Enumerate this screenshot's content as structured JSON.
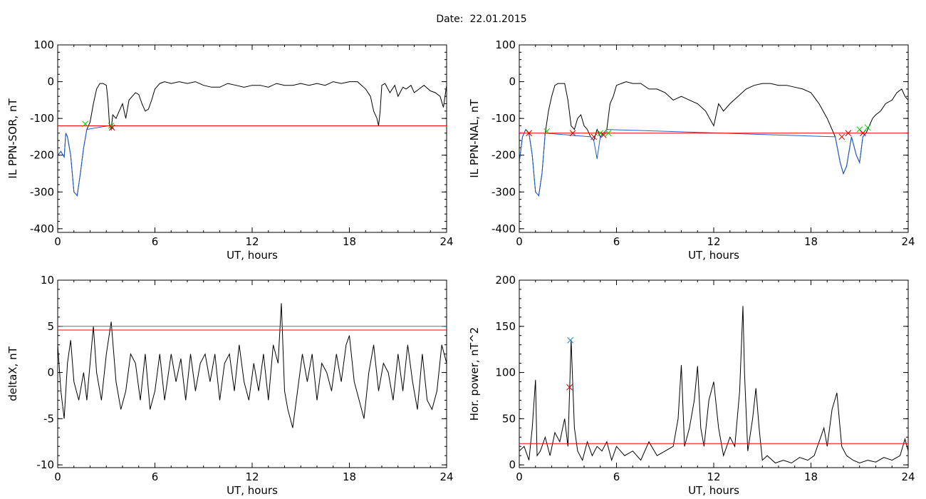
{
  "header": {
    "date_label": "Date:",
    "date_value": "22.01.2015"
  },
  "chart_data": [
    {
      "type": "line",
      "ylabel": "IL PPN-SOR, nT",
      "xlabel": "UT, hours",
      "xlim": [
        0,
        24
      ],
      "ylim": [
        -410,
        100
      ],
      "x_ticks": [
        "0",
        "6",
        "12",
        "18",
        "24"
      ],
      "y_ticks": [
        "100",
        "0",
        "-100",
        "-200",
        "-300",
        "-400"
      ],
      "series": [
        {
          "color": "#000000",
          "x": [
            0,
            0.2,
            0.4,
            0.5,
            0.6,
            0.8,
            1.0,
            1.2,
            1.4,
            1.6,
            1.8,
            2.0,
            2.2,
            2.4,
            2.6,
            2.8,
            3.0,
            3.1,
            3.2,
            3.3,
            3.4,
            3.6,
            3.8,
            4.0,
            4.2,
            4.4,
            4.6,
            4.8,
            5.0,
            5.2,
            5.4,
            5.6,
            5.8,
            6.0,
            6.3,
            6.6,
            7.0,
            7.5,
            8.0,
            8.5,
            9.0,
            9.5,
            10.0,
            10.5,
            11.0,
            11.5,
            12.0,
            12.5,
            13.0,
            13.5,
            14.0,
            14.5,
            15.0,
            15.5,
            16.0,
            16.5,
            17.0,
            17.5,
            18.0,
            18.5,
            19.0,
            19.3,
            19.5,
            19.7,
            19.8,
            19.9,
            20.0,
            20.2,
            20.5,
            20.8,
            21.0,
            21.3,
            21.5,
            21.8,
            22.0,
            22.3,
            22.6,
            23.0,
            23.3,
            23.6,
            23.8,
            24.0
          ],
          "y": [
            -200,
            -190,
            -205,
            -140,
            -150,
            -200,
            -300,
            -310,
            -250,
            -180,
            -130,
            -110,
            -60,
            -20,
            -5,
            -5,
            -10,
            -50,
            -120,
            -130,
            -90,
            -100,
            -80,
            -60,
            -100,
            -50,
            -40,
            -30,
            -35,
            -60,
            -80,
            -75,
            -50,
            -20,
            -5,
            0,
            -5,
            0,
            -5,
            0,
            -10,
            -15,
            -15,
            -5,
            -10,
            -15,
            -10,
            -10,
            -15,
            -5,
            -10,
            -10,
            -5,
            -10,
            -5,
            -10,
            0,
            -5,
            0,
            0,
            -20,
            -40,
            -80,
            -100,
            -120,
            -80,
            -10,
            -5,
            -30,
            -10,
            -40,
            -15,
            -20,
            -10,
            -30,
            -20,
            -10,
            -25,
            -30,
            -40,
            -70,
            -10
          ]
        },
        {
          "color": "#1f5fd0",
          "x": [
            0,
            0.2,
            0.4,
            0.5,
            0.6,
            0.8,
            1.0,
            1.2,
            1.4,
            1.6,
            1.8,
            3.1,
            3.2,
            3.3,
            3.4
          ],
          "y": [
            -200,
            -190,
            -205,
            -140,
            -150,
            -200,
            -300,
            -310,
            -250,
            -180,
            -130,
            -120,
            -120,
            -130,
            -125
          ]
        },
        {
          "color": "#ff0000",
          "x": [
            0,
            24
          ],
          "y": [
            -120,
            -120
          ]
        }
      ],
      "markers": [
        {
          "symbol": "x",
          "color": "#00cc00",
          "x": 1.7,
          "y": -115
        },
        {
          "symbol": "x",
          "color": "#00cc00",
          "x": 3.3,
          "y": -120
        },
        {
          "symbol": "x",
          "color": "#cc0000",
          "x": 3.35,
          "y": -125
        }
      ]
    },
    {
      "type": "line",
      "ylabel": "IL PPN-NAL, nT",
      "xlabel": "UT, hours",
      "xlim": [
        0,
        24
      ],
      "ylim": [
        -410,
        100
      ],
      "x_ticks": [
        "0",
        "6",
        "12",
        "18",
        "24"
      ],
      "y_ticks": [
        "100",
        "0",
        "-100",
        "-200",
        "-300",
        "-400"
      ],
      "series": [
        {
          "color": "#000000",
          "x": [
            0,
            0.2,
            0.4,
            0.6,
            0.8,
            1.0,
            1.2,
            1.4,
            1.6,
            1.8,
            2.0,
            2.2,
            2.4,
            2.8,
            3.0,
            3.2,
            3.4,
            3.6,
            3.8,
            4.0,
            4.2,
            4.4,
            4.6,
            4.8,
            5.0,
            5.2,
            5.4,
            5.6,
            5.8,
            6.0,
            6.3,
            6.6,
            7.0,
            7.5,
            8.0,
            8.5,
            9.0,
            9.5,
            10.0,
            10.5,
            11.0,
            11.5,
            12.0,
            12.3,
            12.6,
            13.0,
            13.5,
            14.0,
            14.5,
            15.0,
            15.5,
            16.0,
            16.5,
            17.0,
            17.5,
            18.0,
            18.5,
            19.0,
            19.5,
            19.8,
            20.0,
            20.2,
            20.5,
            20.8,
            21.0,
            21.2,
            21.4,
            21.6,
            21.8,
            22.0,
            22.3,
            22.6,
            23.0,
            23.3,
            23.6,
            23.8,
            24.0
          ],
          "y": [
            -220,
            -150,
            -130,
            -140,
            -200,
            -300,
            -310,
            -250,
            -140,
            -80,
            -40,
            -10,
            -5,
            -5,
            -50,
            -120,
            -130,
            -100,
            -90,
            -120,
            -130,
            -150,
            -160,
            -130,
            -150,
            -140,
            -130,
            -60,
            -40,
            -10,
            -5,
            0,
            -5,
            -5,
            -20,
            -20,
            -30,
            -50,
            -40,
            -50,
            -60,
            -80,
            -120,
            -60,
            -80,
            -60,
            -40,
            -20,
            -10,
            -5,
            -5,
            -10,
            -10,
            -15,
            -20,
            -30,
            -60,
            -100,
            -150,
            -220,
            -250,
            -230,
            -150,
            -200,
            -220,
            -150,
            -140,
            -120,
            -100,
            -90,
            -80,
            -60,
            -50,
            -30,
            -20,
            -40,
            -50
          ]
        },
        {
          "color": "#1f5fd0",
          "x": [
            0,
            0.2,
            0.4,
            0.6,
            0.8,
            1.0,
            1.2,
            1.4,
            1.6,
            4.4,
            4.6,
            4.8,
            5.0,
            5.2,
            5.4,
            19.5,
            19.8,
            20.0,
            20.2,
            20.5,
            20.8,
            21.0,
            21.2,
            21.4
          ],
          "y": [
            -220,
            -150,
            -130,
            -140,
            -200,
            -300,
            -310,
            -250,
            -140,
            -150,
            -160,
            -210,
            -150,
            -140,
            -130,
            -150,
            -220,
            -250,
            -230,
            -150,
            -200,
            -220,
            -150,
            -140
          ]
        },
        {
          "color": "#ff0000",
          "x": [
            0,
            24
          ],
          "y": [
            -140,
            -140
          ]
        }
      ],
      "markers": [
        {
          "symbol": "x",
          "color": "#cc0000",
          "x": 0.6,
          "y": -140
        },
        {
          "symbol": "x",
          "color": "#00cc00",
          "x": 1.7,
          "y": -135
        },
        {
          "symbol": "x",
          "color": "#cc0000",
          "x": 3.3,
          "y": -140
        },
        {
          "symbol": "x",
          "color": "#cc0000",
          "x": 4.6,
          "y": -150
        },
        {
          "symbol": "x",
          "color": "#00cc00",
          "x": 5.0,
          "y": -140
        },
        {
          "symbol": "x",
          "color": "#cc0000",
          "x": 5.2,
          "y": -145
        },
        {
          "symbol": "x",
          "color": "#00cc00",
          "x": 5.5,
          "y": -140
        },
        {
          "symbol": "x",
          "color": "#cc0000",
          "x": 19.9,
          "y": -150
        },
        {
          "symbol": "x",
          "color": "#cc0000",
          "x": 20.3,
          "y": -140
        },
        {
          "symbol": "x",
          "color": "#00cc00",
          "x": 21.0,
          "y": -130
        },
        {
          "symbol": "x",
          "color": "#cc0000",
          "x": 21.2,
          "y": -140
        },
        {
          "symbol": "x",
          "color": "#00cc00",
          "x": 21.5,
          "y": -125
        }
      ]
    },
    {
      "type": "line",
      "ylabel": "deltaX, nT",
      "xlabel": "UT, hours",
      "xlim": [
        0,
        24
      ],
      "ylim": [
        -10.3,
        10
      ],
      "x_ticks": [
        "0",
        "6",
        "12",
        "18",
        "24"
      ],
      "y_ticks": [
        "10",
        "5",
        "0",
        "-5",
        "-10"
      ],
      "series": [
        {
          "color": "#000000",
          "x": [
            0,
            0.2,
            0.4,
            0.6,
            0.8,
            1.0,
            1.3,
            1.6,
            1.8,
            2.0,
            2.2,
            2.4,
            2.7,
            3.0,
            3.3,
            3.6,
            3.9,
            4.2,
            4.5,
            4.8,
            5.1,
            5.4,
            5.7,
            6.0,
            6.3,
            6.6,
            7.0,
            7.3,
            7.6,
            7.9,
            8.2,
            8.5,
            8.8,
            9.1,
            9.4,
            9.7,
            10.0,
            10.3,
            10.6,
            10.9,
            11.2,
            11.5,
            11.8,
            12.1,
            12.4,
            12.7,
            13.0,
            13.3,
            13.6,
            13.8,
            14.0,
            14.2,
            14.5,
            14.8,
            15.1,
            15.4,
            15.7,
            16.0,
            16.3,
            16.6,
            16.9,
            17.2,
            17.5,
            17.8,
            18.0,
            18.3,
            18.6,
            18.9,
            19.2,
            19.5,
            19.8,
            20.1,
            20.4,
            20.7,
            21.0,
            21.3,
            21.6,
            21.9,
            22.2,
            22.5,
            22.8,
            23.1,
            23.4,
            23.7,
            24.0
          ],
          "y": [
            3,
            -2,
            -5,
            1,
            3.5,
            -1,
            -3,
            0,
            -3,
            1,
            5,
            0,
            -3,
            2,
            5.5,
            -1,
            -4,
            -2,
            2,
            1,
            -3,
            2,
            -4,
            -2,
            2,
            -3,
            2,
            -1,
            1.5,
            -3,
            2,
            -2,
            1,
            2,
            -1,
            2,
            -3,
            1,
            2,
            -2,
            3,
            -1,
            -3,
            1,
            -2,
            2,
            -3,
            3,
            1,
            7.5,
            -2,
            -4,
            -6,
            -2,
            2,
            -1,
            2,
            -3,
            1,
            0,
            -2,
            2,
            -1,
            3,
            4,
            -1,
            -3,
            -5,
            0,
            3,
            -2,
            1,
            0,
            -3,
            2,
            -2,
            3,
            -1,
            -4,
            2,
            -3,
            -4,
            -2,
            3,
            1
          ]
        },
        {
          "color": "#ff0000",
          "x": [
            0,
            24
          ],
          "y": [
            4.6,
            4.6
          ]
        },
        {
          "color": "#2a8a8a",
          "x": [
            0,
            24
          ],
          "y": [
            5.0,
            5.0
          ]
        }
      ],
      "markers": []
    },
    {
      "type": "line",
      "ylabel": "Hor. power, nT^2",
      "xlabel": "UT, hours",
      "xlim": [
        0,
        24
      ],
      "ylim": [
        -3,
        200
      ],
      "x_ticks": [
        "0",
        "6",
        "12",
        "18",
        "24"
      ],
      "y_ticks": [
        "200",
        "150",
        "100",
        "50",
        "0"
      ],
      "series": [
        {
          "color": "#000000",
          "x": [
            0,
            0.3,
            0.6,
            0.8,
            1.0,
            1.1,
            1.3,
            1.6,
            1.9,
            2.2,
            2.5,
            2.8,
            3.0,
            3.2,
            3.4,
            3.6,
            3.9,
            4.2,
            4.5,
            4.8,
            5.1,
            5.4,
            5.7,
            6.0,
            6.5,
            7.0,
            7.5,
            8.0,
            8.5,
            9.0,
            9.5,
            9.8,
            10.0,
            10.2,
            10.5,
            10.8,
            11.0,
            11.2,
            11.4,
            11.7,
            12.0,
            12.3,
            12.6,
            13.0,
            13.3,
            13.6,
            13.8,
            13.9,
            14.1,
            14.4,
            14.6,
            14.8,
            15.0,
            15.3,
            15.8,
            16.3,
            16.8,
            17.3,
            17.8,
            18.2,
            18.5,
            18.8,
            19.0,
            19.3,
            19.6,
            19.9,
            20.2,
            20.6,
            21.0,
            21.5,
            22.0,
            22.5,
            23.0,
            23.5,
            23.8,
            24.0
          ],
          "y": [
            15,
            20,
            5,
            40,
            92,
            10,
            15,
            30,
            10,
            35,
            25,
            50,
            20,
            135,
            40,
            15,
            5,
            25,
            10,
            20,
            15,
            25,
            5,
            20,
            10,
            15,
            5,
            25,
            10,
            15,
            20,
            50,
            108,
            20,
            40,
            70,
            107,
            40,
            20,
            70,
            90,
            40,
            10,
            30,
            20,
            80,
            172,
            100,
            15,
            50,
            83,
            40,
            5,
            10,
            2,
            5,
            2,
            8,
            5,
            10,
            25,
            40,
            20,
            60,
            78,
            20,
            10,
            5,
            2,
            5,
            3,
            8,
            5,
            10,
            28,
            15
          ]
        },
        {
          "color": "#ff0000",
          "x": [
            0,
            24
          ],
          "y": [
            23,
            23
          ]
        }
      ],
      "markers": [
        {
          "symbol": "x",
          "color": "#1f7fd0",
          "x": 3.15,
          "y": 135
        },
        {
          "symbol": "x",
          "color": "#cc0000",
          "x": 3.1,
          "y": 84
        }
      ]
    }
  ]
}
